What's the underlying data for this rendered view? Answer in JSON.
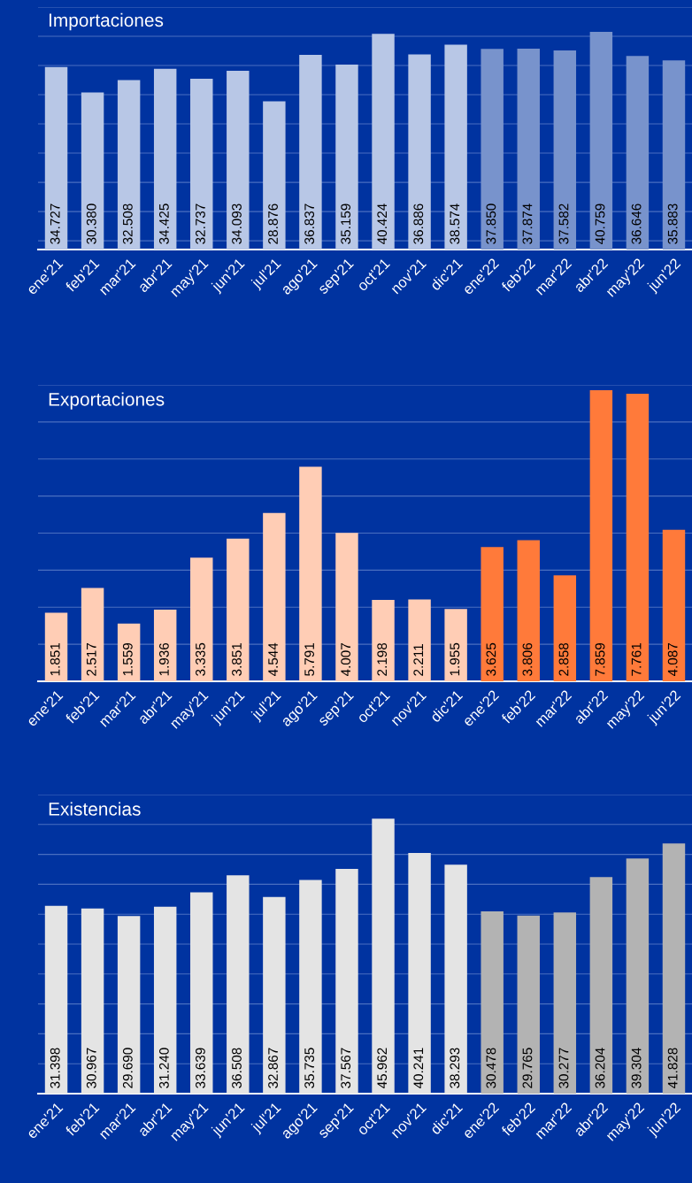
{
  "chart_data": [
    {
      "type": "bar",
      "title": "Importaciones",
      "categories": [
        "ene'21",
        "feb'21",
        "mar'21",
        "abr'21",
        "may'21",
        "jun'21",
        "jul'21",
        "ago'21",
        "sep'21",
        "oct'21",
        "nov'21",
        "dic'21",
        "ene'22",
        "feb'22",
        "mar'22",
        "abr'22",
        "may'22",
        "jun'22"
      ],
      "values": [
        34.727,
        30.38,
        32.508,
        34.425,
        32.737,
        34.093,
        28.876,
        36.837,
        35.159,
        40.424,
        36.886,
        38.574,
        37.85,
        37.874,
        37.582,
        40.759,
        36.646,
        35.883
      ],
      "value_labels": [
        "34.727",
        "30.380",
        "32.508",
        "34.425",
        "32.737",
        "34.093",
        "28.876",
        "36.837",
        "35.159",
        "40.424",
        "36.886",
        "38.574",
        "37.850",
        "37.874",
        "37.582",
        "40.759",
        "36.646",
        "35.883"
      ],
      "colors": [
        "#b8c7e6",
        "#b8c7e6",
        "#b8c7e6",
        "#b8c7e6",
        "#b8c7e6",
        "#b8c7e6",
        "#b8c7e6",
        "#b8c7e6",
        "#b8c7e6",
        "#b8c7e6",
        "#b8c7e6",
        "#b8c7e6",
        "#7893cc",
        "#7893cc",
        "#7893cc",
        "#7893cc",
        "#7893cc",
        "#7893cc"
      ],
      "ylim": [
        3.5,
        45
      ],
      "yticks": [
        {
          "value": 5,
          "label": null
        },
        {
          "value": 10,
          "label": null
        },
        {
          "value": 15,
          "label": null
        },
        {
          "value": 20,
          "label": null
        },
        {
          "value": 25,
          "label": null
        },
        {
          "value": 30,
          "label": null
        },
        {
          "value": 35,
          "label": null
        },
        {
          "value": 40,
          "label": null
        },
        {
          "value": 45,
          "label": null
        }
      ],
      "grid": "y",
      "tick_labels": "x"
    },
    {
      "type": "bar",
      "title": "Exportaciones",
      "categories": [
        "ene'21",
        "feb'21",
        "mar'21",
        "abr'21",
        "may'21",
        "jun'21",
        "jul'21",
        "ago'21",
        "sep'21",
        "oct'21",
        "nov'21",
        "dic'21",
        "ene'22",
        "feb'22",
        "mar'22",
        "abr'22",
        "may'22",
        "jun'22"
      ],
      "values": [
        1.851,
        2.517,
        1.559,
        1.936,
        3.335,
        3.851,
        4.544,
        5.791,
        4.007,
        2.198,
        2.211,
        1.955,
        3.625,
        3.806,
        2.858,
        7.859,
        7.761,
        4.087
      ],
      "value_labels": [
        "1.851",
        "2.517",
        "1.559",
        "1.936",
        "3.335",
        "3.851",
        "4.544",
        "5.791",
        "4.007",
        "2.198",
        "2.211",
        "1.955",
        "3.625",
        "3.806",
        "2.858",
        "7.859",
        "7.761",
        "4.087"
      ],
      "colors": [
        "#ffcdb5",
        "#ffcdb5",
        "#ffcdb5",
        "#ffcdb5",
        "#ffcdb5",
        "#ffcdb5",
        "#ffcdb5",
        "#ffcdb5",
        "#ffcdb5",
        "#ffcdb5",
        "#ffcdb5",
        "#ffcdb5",
        "#ff7a3a",
        "#ff7a3a",
        "#ff7a3a",
        "#ff7a3a",
        "#ff7a3a",
        "#ff7a3a"
      ],
      "ylim": [
        0,
        8
      ],
      "yticks": [
        {
          "value": 1,
          "label": null
        },
        {
          "value": 2,
          "label": null
        },
        {
          "value": 3,
          "label": null
        },
        {
          "value": 4,
          "label": null
        },
        {
          "value": 5,
          "label": null
        },
        {
          "value": 6,
          "label": null
        },
        {
          "value": 7,
          "label": null
        },
        {
          "value": 8,
          "label": null
        }
      ],
      "grid": "y",
      "tick_labels": "x"
    },
    {
      "type": "bar",
      "title": "Existencias",
      "categories": [
        "ene'21",
        "feb'21",
        "mar'21",
        "abr'21",
        "may'21",
        "jun'21",
        "jul'21",
        "ago'21",
        "sep'21",
        "oct'21",
        "nov'21",
        "dic'21",
        "ene'22",
        "feb'22",
        "mar'22",
        "abr'22",
        "may'22",
        "jun'22"
      ],
      "values": [
        31.398,
        30.967,
        29.69,
        31.24,
        33.639,
        36.508,
        32.867,
        35.735,
        37.567,
        45.962,
        40.241,
        38.293,
        30.478,
        29.765,
        30.277,
        36.204,
        39.304,
        41.828
      ],
      "value_labels": [
        "31.398",
        "30.967",
        "29.690",
        "31.240",
        "33.639",
        "36.508",
        "32.867",
        "35.735",
        "37.567",
        "45.962",
        "40.241",
        "38.293",
        "30.478",
        "29.765",
        "30.277",
        "36.204",
        "39.304",
        "41.828"
      ],
      "colors": [
        "#e4e4e4",
        "#e4e4e4",
        "#e4e4e4",
        "#e4e4e4",
        "#e4e4e4",
        "#e4e4e4",
        "#e4e4e4",
        "#e4e4e4",
        "#e4e4e4",
        "#e4e4e4",
        "#e4e4e4",
        "#e4e4e4",
        "#b3b3b3",
        "#b3b3b3",
        "#b3b3b3",
        "#b3b3b3",
        "#b3b3b3",
        "#b3b3b3"
      ],
      "ylim": [
        0,
        50
      ],
      "yticks": [
        {
          "value": 5,
          "label": null
        },
        {
          "value": 10,
          "label": null
        },
        {
          "value": 15,
          "label": null
        },
        {
          "value": 20,
          "label": null
        },
        {
          "value": 25,
          "label": null
        },
        {
          "value": 30,
          "label": null
        },
        {
          "value": 35,
          "label": null
        },
        {
          "value": 40,
          "label": null
        },
        {
          "value": 45,
          "label": null
        },
        {
          "value": 50,
          "label": null
        }
      ],
      "grid": "y",
      "tick_labels": "x"
    }
  ]
}
